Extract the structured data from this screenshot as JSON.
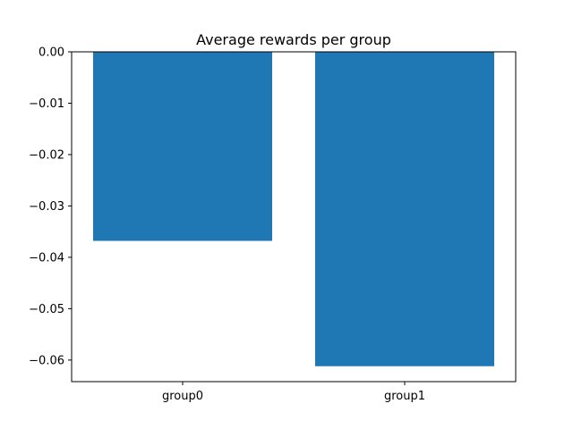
{
  "chart_data": {
    "type": "bar",
    "title": "Average rewards per group",
    "xlabel": "",
    "ylabel": "",
    "categories": [
      "group0",
      "group1"
    ],
    "values": [
      -0.0368,
      -0.0612
    ],
    "ylim": [
      -0.0642,
      0.0
    ],
    "yticks": [
      0.0,
      -0.01,
      -0.02,
      -0.03,
      -0.04,
      -0.05,
      -0.06
    ],
    "ytick_labels": [
      "0.00",
      "−0.01",
      "−0.02",
      "−0.03",
      "−0.04",
      "−0.05",
      "−0.06"
    ],
    "grid": false,
    "legend": "none",
    "bar_color": "#1f77b4"
  }
}
